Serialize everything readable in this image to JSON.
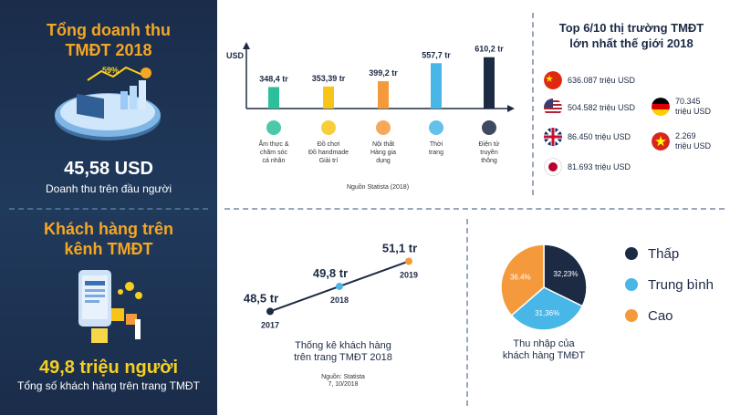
{
  "left": {
    "revenue_title_1": "Tổng doanh thu",
    "revenue_title_2": "TMĐT 2018",
    "per_capita_value": "45,58 USD",
    "per_capita_label": "Doanh thu trên đầu người",
    "customers_title_1": "Khách hàng trên",
    "customers_title_2": "kênh TMĐT",
    "customers_value": "49,8 triệu người",
    "customers_label": "Tổng số khách hàng trên trang TMĐT",
    "illustration_text": "59%"
  },
  "colors": {
    "navy": "#1c2a44",
    "orange": "#f5a623",
    "sky": "#48b6e6",
    "green": "#2bbf9a",
    "yellow": "#f7c518",
    "light_orange": "#f59a3c"
  },
  "chart_data": [
    {
      "type": "bar",
      "ylabel": "USD",
      "categories": [
        "Ẩm thực & chăm sóc cá nhân",
        "Đồ chơi Đồ handmade Giải trí",
        "Nội thất Hàng gia dụng",
        "Thời trang",
        "Điện tử truyền thông"
      ],
      "category_lines": [
        [
          "Ẩm thực &",
          "chăm sóc",
          "cá nhân"
        ],
        [
          "Đồ chơi",
          "Đồ handmade",
          "Giải trí"
        ],
        [
          "Nội thất",
          "Hàng gia",
          "dụng"
        ],
        [
          "Thời",
          "trang"
        ],
        [
          "Điện tử",
          "truyền",
          "thông"
        ]
      ],
      "values": [
        348.4,
        353.39,
        399.2,
        557.7,
        610.2
      ],
      "value_labels": [
        "348,4 tr",
        "353,39 tr",
        "399,2 tr",
        "557,7 tr",
        "610,2 tr"
      ],
      "bar_colors": [
        "#2bbf9a",
        "#f7c518",
        "#f59a3c",
        "#48b6e6",
        "#1c2a44"
      ],
      "source": "Nguồn Statista (2018)"
    },
    {
      "type": "line",
      "x": [
        "2017",
        "2018",
        "2019"
      ],
      "values": [
        48.5,
        49.8,
        51.1
      ],
      "value_labels": [
        "48,5 tr",
        "49,8 tr",
        "51,1 tr"
      ],
      "point_colors": [
        "#1c2a44",
        "#48b6e6",
        "#f59a3c"
      ],
      "title": "Thống kê khách hàng trên trang TMĐT 2018",
      "title_lines": [
        "Thống kê khách hàng",
        "trên trang TMĐT 2018"
      ],
      "source_lines": [
        "Nguồn: Statista",
        "7, 10/2018"
      ]
    },
    {
      "type": "pie",
      "categories": [
        "Thấp",
        "Trung bình",
        "Cao"
      ],
      "values": [
        32.23,
        31.36,
        36.4
      ],
      "value_labels": [
        "32,23%",
        "31,36%",
        "36.4%"
      ],
      "colors": [
        "#1c2a44",
        "#48b6e6",
        "#f59a3c"
      ],
      "title": "Thu nhập của khách hàng TMĐT",
      "title_lines": [
        "Thu nhập của",
        "khách hàng TMĐT"
      ]
    }
  ],
  "top6": {
    "title_1": "Top 6/10 thị trường TMĐT",
    "title_2": "lớn nhất thế giới 2018",
    "countries": [
      {
        "flag": "china-flag-icon",
        "value": "636.087 triệu USD"
      },
      {
        "flag": "usa-flag-icon",
        "value": "504.582 triệu USD"
      },
      {
        "flag": "uk-flag-icon",
        "value": "86.450 triệu USD"
      },
      {
        "flag": "japan-flag-icon",
        "value": "81.693 triệu USD"
      },
      {
        "flag": "germany-flag-icon",
        "value_1": "70.345",
        "value_2": "triệu USD"
      },
      {
        "flag": "vietnam-flag-icon",
        "value_1": "2.269",
        "value_2": "triệu USD"
      }
    ]
  }
}
